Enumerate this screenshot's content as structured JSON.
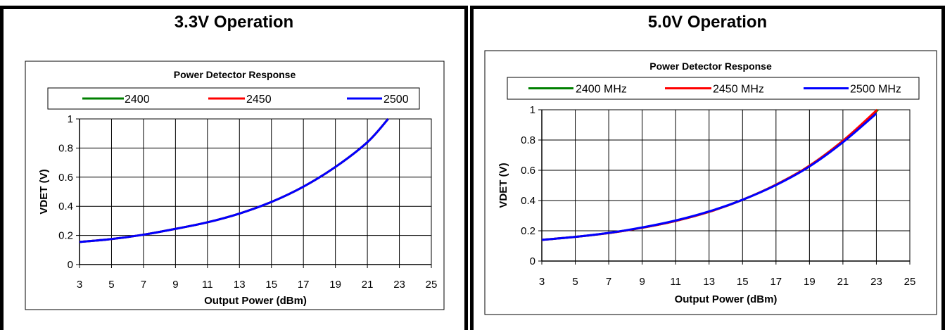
{
  "chart_data": [
    {
      "type": "line",
      "panel_title": "3.3V Operation",
      "title": "Power Detector Response",
      "xlabel": "Output Power (dBm)",
      "ylabel": "VDET (V)",
      "xlim": [
        3,
        25
      ],
      "ylim": [
        0,
        1
      ],
      "x_ticks": [
        "3",
        "5",
        "7",
        "9",
        "11",
        "13",
        "15",
        "17",
        "19",
        "21",
        "23",
        "25"
      ],
      "y_ticks": [
        "0",
        "0.2",
        "0.4",
        "0.6",
        "0.8",
        "1"
      ],
      "grid": true,
      "legend_position": "top",
      "series": [
        {
          "name": "2400",
          "color": "#008000",
          "x": [
            3,
            5,
            7,
            9,
            11,
            13,
            15,
            17,
            19,
            21,
            22.3
          ],
          "y": [
            0.155,
            0.175,
            0.205,
            0.245,
            0.29,
            0.35,
            0.43,
            0.535,
            0.67,
            0.84,
            1.0
          ]
        },
        {
          "name": "2450",
          "color": "#ff0000",
          "x": [
            3,
            5,
            7,
            9,
            11,
            13,
            15,
            17,
            19,
            21,
            22.3
          ],
          "y": [
            0.155,
            0.175,
            0.205,
            0.245,
            0.29,
            0.35,
            0.43,
            0.535,
            0.67,
            0.84,
            1.0
          ]
        },
        {
          "name": "2500",
          "color": "#0000ff",
          "x": [
            3,
            5,
            7,
            9,
            11,
            13,
            15,
            17,
            19,
            21,
            22.3
          ],
          "y": [
            0.155,
            0.175,
            0.205,
            0.245,
            0.29,
            0.35,
            0.43,
            0.535,
            0.67,
            0.84,
            1.0
          ]
        }
      ]
    },
    {
      "type": "line",
      "panel_title": "5.0V Operation",
      "title": "Power Detector Response",
      "xlabel": "Output Power (dBm)",
      "ylabel": "VDET (V)",
      "xlim": [
        3,
        25
      ],
      "ylim": [
        0,
        1
      ],
      "x_ticks": [
        "3",
        "5",
        "7",
        "9",
        "11",
        "13",
        "15",
        "17",
        "19",
        "21",
        "23",
        "25"
      ],
      "y_ticks": [
        "0",
        "0.2",
        "0.4",
        "0.6",
        "0.8",
        "1"
      ],
      "grid": true,
      "legend_position": "top",
      "series": [
        {
          "name": "2400 MHz",
          "color": "#008000",
          "x": [
            3,
            5,
            7,
            9,
            11,
            13,
            15,
            17,
            19,
            21,
            23.1
          ],
          "y": [
            0.14,
            0.16,
            0.185,
            0.22,
            0.265,
            0.325,
            0.405,
            0.505,
            0.63,
            0.795,
            1.0
          ]
        },
        {
          "name": "2450 MHz",
          "color": "#ff0000",
          "x": [
            3,
            5,
            7,
            9,
            11,
            13,
            15,
            17,
            19,
            21,
            23.05
          ],
          "y": [
            0.14,
            0.16,
            0.185,
            0.22,
            0.265,
            0.325,
            0.405,
            0.505,
            0.63,
            0.795,
            1.0
          ]
        },
        {
          "name": "2500 MHz",
          "color": "#0000ff",
          "x": [
            3,
            5,
            7,
            9,
            11,
            13,
            15,
            17,
            19,
            21,
            23
          ],
          "y": [
            0.14,
            0.16,
            0.186,
            0.222,
            0.268,
            0.328,
            0.405,
            0.502,
            0.625,
            0.785,
            0.975
          ]
        }
      ]
    }
  ]
}
